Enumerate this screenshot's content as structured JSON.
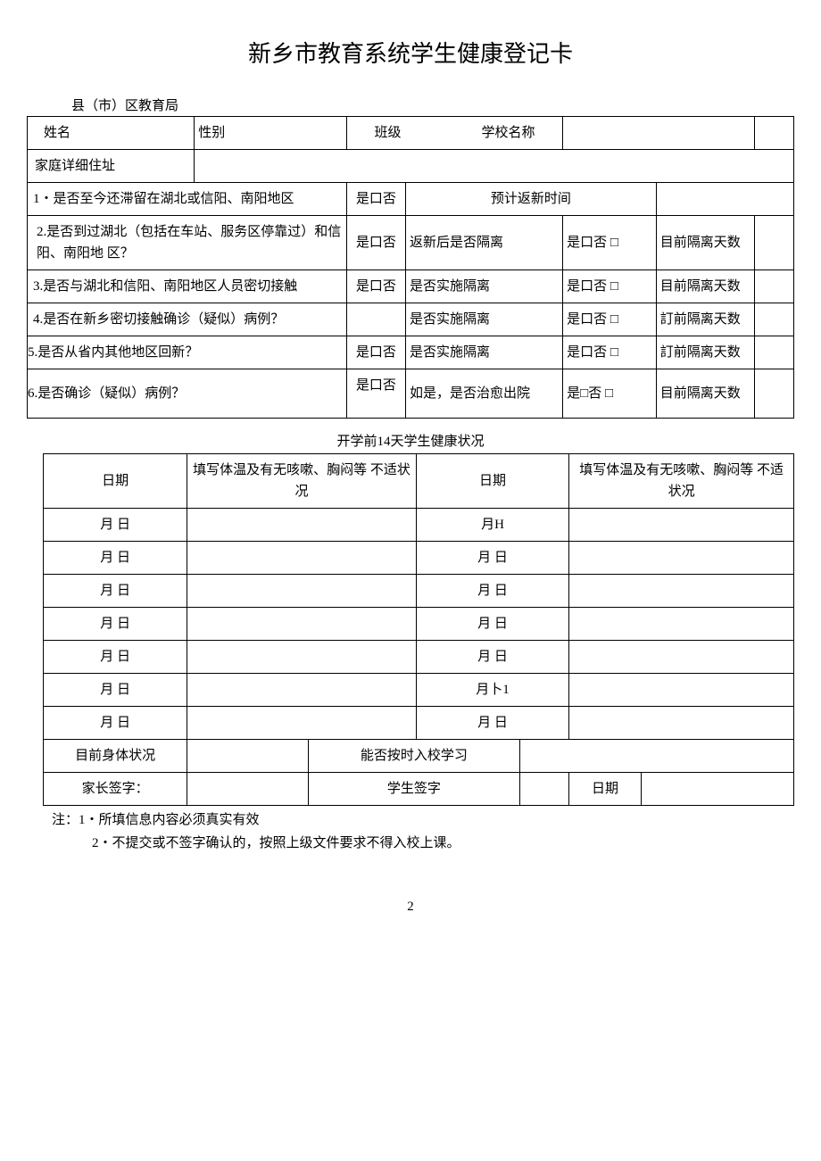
{
  "title": "新乡市教育系统学生健康登记卡",
  "subtitle": "县（市）区教育局",
  "t1": {
    "name_label": "姓名",
    "gender_label": "性别",
    "class_label": "班级",
    "school_label": "学校名称",
    "address_label": "家庭详细住址",
    "q1": "1・是否至今还滞留在湖北或信阳、南阳地区",
    "q1_opt": "是口否",
    "q1_sub": "预计返新时间",
    "q2": "2.是否到过湖北（包括在车站、服务区停靠过）和信阳、南阳地 区？",
    "q2_opt": "是口否",
    "q2_sub": "返新后是否隔离",
    "q2_sub_opt": "是口否 □",
    "q2_days": "目前隔离天数",
    "q3": "3.是否与湖北和信阳、南阳地区人员密切接触",
    "q3_opt": "是口否",
    "q3_sub": "是否实施隔离",
    "q3_sub_opt": "是口否 □",
    "q3_days": "目前隔离天数",
    "q4": "4.是否在新乡密切接触确诊（疑似）病例？",
    "q4_opt": "",
    "q4_sub": "是否实施隔离",
    "q4_sub_opt": "是口否 □",
    "q4_days": "訂前隔离天数",
    "q5": "5.是否从省内其他地区回新？",
    "q5_opt": "是口否",
    "q5_sub": "是否实施隔离",
    "q5_sub_opt": "是口否 □",
    "q5_days": "訂前隔离天数",
    "q6": "6.是否确诊（疑似）病例？",
    "q6_opt": "是口否",
    "q6_sub": "如是，是否治愈出院",
    "q6_sub_opt": "是□否 □",
    "q6_days": "目前隔离天数"
  },
  "section2_title": "开学前14天学生健康状况",
  "t2": {
    "date_label": "日期",
    "cond_label": "填写体温及有无咳嗽、胸闷等 不适状况",
    "date_label2": "日期",
    "cond_label2": "填写体温及有无咳嗽、胸闷等 不适状况",
    "rows_left": [
      "月 日",
      "月 日",
      "月 日",
      "月 日",
      "月 日",
      "月 日",
      "月 日"
    ],
    "rows_right": [
      "月H",
      "月 日",
      "月 日",
      "月 日",
      "月 日",
      "月卜1",
      "月 日"
    ],
    "cur_status_label": "目前身体状况",
    "attend_label": "能否按时入校学习",
    "parent_sign": "家长签字：",
    "student_sign": "学生签字",
    "date_sign": "日期"
  },
  "notes": {
    "l1": "注：1・所填信息内容必须真实有效",
    "l2": "2・不提交或不签字确认的，按照上级文件要求不得入校上课。"
  },
  "page_num": "2"
}
